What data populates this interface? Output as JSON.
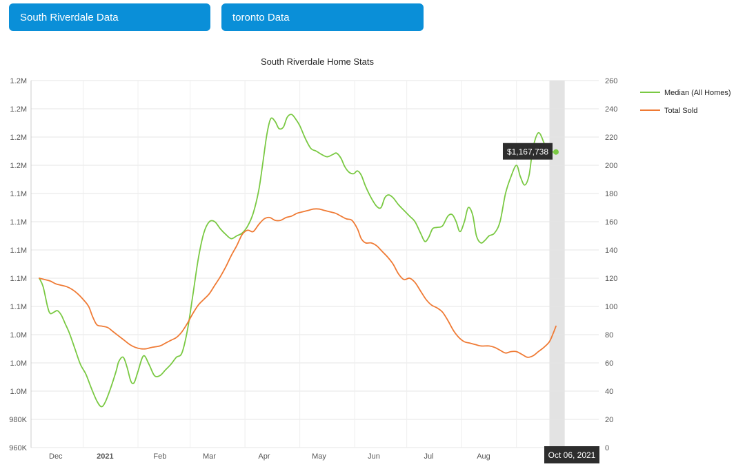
{
  "tabs": [
    {
      "label": "South Riverdale Data"
    },
    {
      "label": "toronto Data"
    }
  ],
  "colors": {
    "button_bg": "#0a8fd8",
    "median_line": "#7ac943",
    "sold_line": "#ef7a34",
    "grid": "#e6e6e6",
    "highlight_band": "#e3e3e3",
    "tooltip_bg": "#2d2d2d"
  },
  "chart_data": {
    "type": "line",
    "title": "South Riverdale Home Stats",
    "x_domain": [
      0,
      10.35
    ],
    "x_ticks": [
      {
        "label": "Dec",
        "x": 0.45,
        "bold": false
      },
      {
        "label": "2021",
        "x": 1.35,
        "bold": true
      },
      {
        "label": "Feb",
        "x": 2.35,
        "bold": false
      },
      {
        "label": "Mar",
        "x": 3.25,
        "bold": false
      },
      {
        "label": "Apr",
        "x": 4.25,
        "bold": false
      },
      {
        "label": "May",
        "x": 5.25,
        "bold": false
      },
      {
        "label": "Jun",
        "x": 6.25,
        "bold": false
      },
      {
        "label": "Jul",
        "x": 7.25,
        "bold": false
      },
      {
        "label": "Aug",
        "x": 8.25,
        "bold": false
      }
    ],
    "x_gridlines": [
      0.95,
      1.95,
      2.9,
      3.9,
      4.9,
      5.9,
      6.85,
      7.85,
      8.85
    ],
    "y_left": {
      "range": [
        0,
        13
      ],
      "ticks": [
        "960K",
        "980K",
        "1.0M",
        "1.0M",
        "1.0M",
        "1.1M",
        "1.1M",
        "1.1M",
        "1.1M",
        "1.1M",
        "1.2M",
        "1.2M",
        "1.2M",
        "1.2M"
      ]
    },
    "y_right": {
      "range": [
        0,
        260
      ],
      "ticks": [
        "0",
        "20",
        "40",
        "60",
        "80",
        "100",
        "120",
        "140",
        "160",
        "180",
        "200",
        "220",
        "240",
        "260"
      ]
    },
    "legend": [
      {
        "name": "Median (All Homes)",
        "color": "#7ac943"
      },
      {
        "name": "Total Sold",
        "color": "#ef7a34"
      }
    ],
    "legend_position": "right",
    "series": [
      {
        "name": "Median (All Homes)",
        "axis": "left",
        "color": "#7ac943",
        "points": [
          [
            0.15,
            6.0
          ],
          [
            0.22,
            5.7
          ],
          [
            0.3,
            5.0
          ],
          [
            0.35,
            4.75
          ],
          [
            0.42,
            4.8
          ],
          [
            0.48,
            4.85
          ],
          [
            0.55,
            4.7
          ],
          [
            0.62,
            4.4
          ],
          [
            0.7,
            4.05
          ],
          [
            0.8,
            3.5
          ],
          [
            0.9,
            2.95
          ],
          [
            1.0,
            2.6
          ],
          [
            1.1,
            2.1
          ],
          [
            1.2,
            1.65
          ],
          [
            1.28,
            1.45
          ],
          [
            1.35,
            1.6
          ],
          [
            1.45,
            2.1
          ],
          [
            1.55,
            2.7
          ],
          [
            1.6,
            3.05
          ],
          [
            1.68,
            3.2
          ],
          [
            1.75,
            2.85
          ],
          [
            1.82,
            2.35
          ],
          [
            1.88,
            2.3
          ],
          [
            1.95,
            2.7
          ],
          [
            2.05,
            3.25
          ],
          [
            2.15,
            2.95
          ],
          [
            2.25,
            2.55
          ],
          [
            2.35,
            2.55
          ],
          [
            2.45,
            2.75
          ],
          [
            2.55,
            2.95
          ],
          [
            2.65,
            3.2
          ],
          [
            2.75,
            3.35
          ],
          [
            2.85,
            4.15
          ],
          [
            2.95,
            5.4
          ],
          [
            3.05,
            6.7
          ],
          [
            3.15,
            7.6
          ],
          [
            3.25,
            8.0
          ],
          [
            3.35,
            8.0
          ],
          [
            3.45,
            7.75
          ],
          [
            3.55,
            7.55
          ],
          [
            3.65,
            7.4
          ],
          [
            3.75,
            7.5
          ],
          [
            3.85,
            7.6
          ],
          [
            3.95,
            7.85
          ],
          [
            4.05,
            8.3
          ],
          [
            4.15,
            9.1
          ],
          [
            4.22,
            10.0
          ],
          [
            4.3,
            11.1
          ],
          [
            4.37,
            11.65
          ],
          [
            4.45,
            11.55
          ],
          [
            4.52,
            11.3
          ],
          [
            4.6,
            11.35
          ],
          [
            4.67,
            11.7
          ],
          [
            4.75,
            11.8
          ],
          [
            4.82,
            11.65
          ],
          [
            4.9,
            11.4
          ],
          [
            5.0,
            10.95
          ],
          [
            5.1,
            10.6
          ],
          [
            5.2,
            10.5
          ],
          [
            5.3,
            10.38
          ],
          [
            5.4,
            10.3
          ],
          [
            5.5,
            10.38
          ],
          [
            5.57,
            10.43
          ],
          [
            5.65,
            10.25
          ],
          [
            5.72,
            9.95
          ],
          [
            5.8,
            9.75
          ],
          [
            5.88,
            9.7
          ],
          [
            5.95,
            9.8
          ],
          [
            6.02,
            9.65
          ],
          [
            6.1,
            9.25
          ],
          [
            6.2,
            8.85
          ],
          [
            6.3,
            8.55
          ],
          [
            6.38,
            8.5
          ],
          [
            6.45,
            8.85
          ],
          [
            6.52,
            8.95
          ],
          [
            6.6,
            8.85
          ],
          [
            6.7,
            8.6
          ],
          [
            6.8,
            8.4
          ],
          [
            6.9,
            8.2
          ],
          [
            7.0,
            8.0
          ],
          [
            7.1,
            7.6
          ],
          [
            7.18,
            7.3
          ],
          [
            7.25,
            7.45
          ],
          [
            7.32,
            7.75
          ],
          [
            7.4,
            7.8
          ],
          [
            7.5,
            7.85
          ],
          [
            7.6,
            8.2
          ],
          [
            7.68,
            8.25
          ],
          [
            7.75,
            8.0
          ],
          [
            7.82,
            7.65
          ],
          [
            7.9,
            8.0
          ],
          [
            7.97,
            8.5
          ],
          [
            8.05,
            8.25
          ],
          [
            8.12,
            7.5
          ],
          [
            8.2,
            7.25
          ],
          [
            8.28,
            7.35
          ],
          [
            8.35,
            7.5
          ],
          [
            8.45,
            7.6
          ],
          [
            8.55,
            8.0
          ],
          [
            8.65,
            9.0
          ],
          [
            8.75,
            9.6
          ],
          [
            8.85,
            10.0
          ],
          [
            8.92,
            9.6
          ],
          [
            9.0,
            9.3
          ],
          [
            9.08,
            9.65
          ],
          [
            9.15,
            10.6
          ],
          [
            9.25,
            11.15
          ],
          [
            9.35,
            10.8
          ],
          [
            9.42,
            10.4
          ],
          [
            9.5,
            10.47
          ],
          [
            9.57,
            10.47
          ]
        ]
      },
      {
        "name": "Total Sold",
        "axis": "right",
        "color": "#ef7a34",
        "points": [
          [
            0.15,
            120
          ],
          [
            0.25,
            119
          ],
          [
            0.35,
            118
          ],
          [
            0.45,
            116
          ],
          [
            0.55,
            115
          ],
          [
            0.65,
            114
          ],
          [
            0.75,
            112
          ],
          [
            0.85,
            109
          ],
          [
            0.95,
            105
          ],
          [
            1.05,
            100
          ],
          [
            1.12,
            93
          ],
          [
            1.2,
            87
          ],
          [
            1.3,
            86
          ],
          [
            1.4,
            85
          ],
          [
            1.5,
            82
          ],
          [
            1.6,
            79
          ],
          [
            1.7,
            76
          ],
          [
            1.8,
            73
          ],
          [
            1.9,
            71
          ],
          [
            2.0,
            70
          ],
          [
            2.1,
            70
          ],
          [
            2.2,
            71
          ],
          [
            2.35,
            72
          ],
          [
            2.45,
            74
          ],
          [
            2.55,
            76
          ],
          [
            2.65,
            78
          ],
          [
            2.75,
            82
          ],
          [
            2.85,
            88
          ],
          [
            2.95,
            95
          ],
          [
            3.05,
            101
          ],
          [
            3.15,
            105
          ],
          [
            3.25,
            109
          ],
          [
            3.35,
            115
          ],
          [
            3.45,
            121
          ],
          [
            3.55,
            128
          ],
          [
            3.65,
            136
          ],
          [
            3.75,
            143
          ],
          [
            3.85,
            151
          ],
          [
            3.95,
            154
          ],
          [
            4.05,
            153
          ],
          [
            4.15,
            158
          ],
          [
            4.25,
            162
          ],
          [
            4.35,
            163
          ],
          [
            4.45,
            161
          ],
          [
            4.55,
            161
          ],
          [
            4.65,
            163
          ],
          [
            4.75,
            164
          ],
          [
            4.85,
            166
          ],
          [
            4.95,
            167
          ],
          [
            5.05,
            168
          ],
          [
            5.15,
            169
          ],
          [
            5.25,
            169
          ],
          [
            5.35,
            168
          ],
          [
            5.45,
            167
          ],
          [
            5.55,
            166
          ],
          [
            5.65,
            164
          ],
          [
            5.75,
            162
          ],
          [
            5.85,
            161
          ],
          [
            5.95,
            155
          ],
          [
            6.02,
            148
          ],
          [
            6.1,
            145
          ],
          [
            6.2,
            145
          ],
          [
            6.3,
            143
          ],
          [
            6.4,
            139
          ],
          [
            6.5,
            135
          ],
          [
            6.6,
            130
          ],
          [
            6.7,
            123
          ],
          [
            6.8,
            119
          ],
          [
            6.9,
            120
          ],
          [
            7.0,
            117
          ],
          [
            7.1,
            111
          ],
          [
            7.2,
            105
          ],
          [
            7.3,
            101
          ],
          [
            7.4,
            99
          ],
          [
            7.5,
            96
          ],
          [
            7.6,
            90
          ],
          [
            7.7,
            83
          ],
          [
            7.8,
            78
          ],
          [
            7.9,
            75
          ],
          [
            8.0,
            74
          ],
          [
            8.1,
            73
          ],
          [
            8.2,
            72
          ],
          [
            8.35,
            72
          ],
          [
            8.45,
            71
          ],
          [
            8.55,
            69
          ],
          [
            8.65,
            67
          ],
          [
            8.75,
            68
          ],
          [
            8.85,
            68
          ],
          [
            8.95,
            66
          ],
          [
            9.05,
            64
          ],
          [
            9.15,
            65
          ],
          [
            9.25,
            68
          ],
          [
            9.35,
            71
          ],
          [
            9.45,
            75
          ],
          [
            9.52,
            81
          ],
          [
            9.57,
            86
          ]
        ]
      }
    ],
    "highlight_x_range": [
      9.45,
      9.73
    ],
    "tooltip_value": "$1,167,738",
    "hover_date": "Oct 06, 2021"
  }
}
